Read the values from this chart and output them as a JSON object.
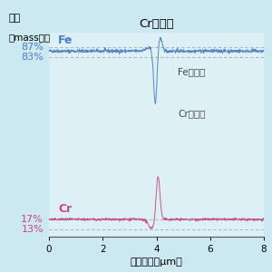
{
  "title": "Cr炭化物",
  "xlabel_part1": "分析距離（",
  "xlabel_mu": "μm）",
  "ylabel_line1": "濃度",
  "ylabel_line2": "（mass％）",
  "background_color": "#cce8f0",
  "plot_bg_color": "#ddf0f6",
  "fe_color": "#4a7cc7",
  "cr_color": "#cc4488",
  "fe_label": "Fe",
  "cr_label": "Cr",
  "fe_annotation": "Feの濃化",
  "cr_annotation": "Crの濃化",
  "fe_baseline": 85.5,
  "dashed_lines_fe": [
    87.0,
    83.0
  ],
  "dashed_lines_cr": [
    17.0,
    13.0
  ],
  "cr_baseline": 17.0,
  "xlim": [
    0,
    8
  ],
  "ylim": [
    10,
    93
  ],
  "grain_boundary_x": 4.0,
  "noise_amplitude_fe": 0.35,
  "noise_amplitude_cr": 0.25
}
